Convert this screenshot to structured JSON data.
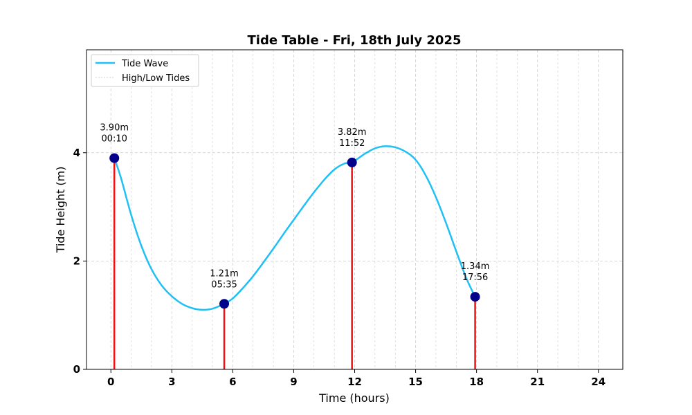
{
  "chart_data": {
    "type": "line",
    "title": "Tide Table - Fri, 18th July 2025",
    "xlabel": "Time (hours)",
    "ylabel": "Tide Height (m)",
    "xlim": [
      -1.2,
      25.2
    ],
    "ylim": [
      0,
      5.9
    ],
    "xticks": [
      0,
      3,
      6,
      9,
      12,
      15,
      18,
      21,
      24
    ],
    "xtick_labels": [
      "0",
      "3",
      "6",
      "9",
      "12",
      "15",
      "18",
      "21",
      "24"
    ],
    "yticks": [
      0,
      2,
      4
    ],
    "ytick_labels": [
      "0",
      "2",
      "4"
    ],
    "grid": true,
    "legend": {
      "placement": "top-left",
      "entries": [
        {
          "label": "Tide Wave",
          "color": "#1ec0f5",
          "style": "solid"
        },
        {
          "label": "High/Low Tides",
          "color": "#cccccc",
          "style": "dotted"
        }
      ]
    },
    "series": [
      {
        "name": "Tide Wave",
        "color": "#1ec0f5",
        "x": [
          0.17,
          0.5,
          1,
          1.5,
          2,
          2.5,
          3,
          3.5,
          4,
          4.5,
          5,
          5.58,
          6,
          6.5,
          7,
          7.5,
          8,
          8.5,
          9,
          9.5,
          10,
          10.5,
          11,
          11.5,
          11.87,
          12.5,
          13,
          13.5,
          14,
          14.5,
          15,
          15.5,
          16,
          16.5,
          17,
          17.5,
          17.93
        ],
        "y": [
          3.9,
          3.53,
          2.85,
          2.28,
          1.85,
          1.55,
          1.35,
          1.21,
          1.13,
          1.1,
          1.12,
          1.21,
          1.31,
          1.5,
          1.72,
          1.97,
          2.23,
          2.5,
          2.76,
          3.02,
          3.27,
          3.5,
          3.69,
          3.8,
          3.82,
          3.98,
          4.08,
          4.12,
          4.1,
          4.02,
          3.87,
          3.58,
          3.18,
          2.7,
          2.18,
          1.68,
          1.34
        ]
      }
    ],
    "tides": [
      {
        "time": "00:10",
        "hour": 0.17,
        "height": 3.9,
        "label": "3.90m"
      },
      {
        "time": "05:35",
        "hour": 5.58,
        "height": 1.21,
        "label": "1.21m"
      },
      {
        "time": "11:52",
        "hour": 11.87,
        "height": 3.82,
        "label": "3.82m"
      },
      {
        "time": "17:56",
        "hour": 17.93,
        "height": 1.34,
        "label": "1.34m"
      }
    ],
    "colors": {
      "wave": "#1ec0f5",
      "marker": "#00008b",
      "stem": "#ee1111",
      "grid": "#cccccc"
    }
  }
}
